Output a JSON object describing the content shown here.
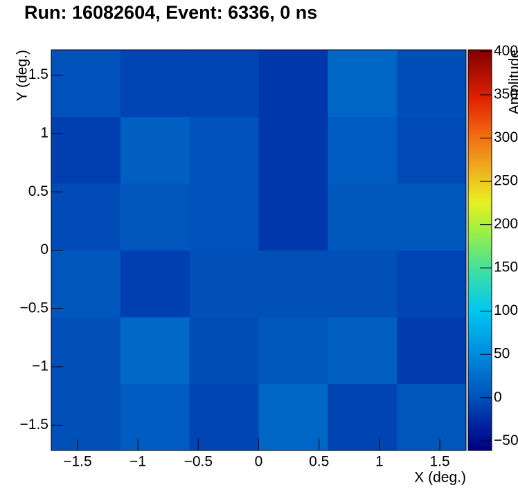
{
  "chart_data": {
    "type": "heatmap",
    "title": "Run: 16082604, Event: 6336, 0 ns",
    "x_label": "X (deg.)",
    "y_label": "Y (deg.)",
    "z_label": "Amplitude",
    "xbins": [
      -1.7175,
      -1.145,
      -0.5725,
      0,
      0.5725,
      1.145,
      1.7175
    ],
    "ybins": [
      -1.7175,
      -1.145,
      -0.5725,
      0,
      0.5725,
      1.145,
      1.7175
    ],
    "z": [
      [
        -1,
        10,
        -8,
        18,
        -9,
        4
      ],
      [
        -1,
        20,
        -3,
        5,
        12,
        -14
      ],
      [
        4,
        -12,
        -1,
        -1,
        -1,
        -8
      ],
      [
        -4,
        4,
        0,
        -18,
        5,
        5
      ],
      [
        -12,
        12,
        0,
        -18,
        10,
        -5
      ],
      [
        0,
        -8,
        -8,
        -18,
        18,
        -2
      ]
    ],
    "xlim": [
      -1.7175,
      1.7175
    ],
    "ylim": [
      -1.7175,
      1.7175
    ],
    "zlim": [
      -61,
      402
    ],
    "xticks": [
      {
        "value": -1.5,
        "label": "−1.5"
      },
      {
        "value": -1,
        "label": "−1"
      },
      {
        "value": -0.5,
        "label": "−0.5"
      },
      0,
      0.5,
      1,
      1.5
    ],
    "yticks": [
      {
        "value": -1.5,
        "label": "−1.5"
      },
      {
        "value": -1,
        "label": "−1"
      },
      {
        "value": -0.5,
        "label": "−0.5"
      },
      0,
      0.5,
      1,
      1.5
    ],
    "zticks": [
      {
        "value": -50,
        "label": "−50"
      },
      0,
      50,
      100,
      150,
      200,
      250,
      300,
      350,
      400
    ]
  }
}
